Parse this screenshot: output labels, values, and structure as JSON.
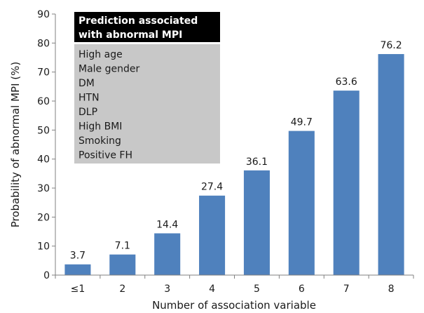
{
  "chart_data": {
    "type": "bar",
    "categories": [
      "≤1",
      "2",
      "3",
      "4",
      "5",
      "6",
      "7",
      "8"
    ],
    "values": [
      3.7,
      7.1,
      14.4,
      27.4,
      36.1,
      49.7,
      63.6,
      76.2
    ],
    "data_labels": [
      "3.7",
      "7.1",
      "14.4",
      "27.4",
      "36.1",
      "49.7",
      "63.6",
      "76.2"
    ],
    "title": "",
    "xlabel": "Number of association variable",
    "ylabel": "Probability of abnormal MPI (%)",
    "ylim": [
      0,
      90
    ],
    "yticks": [
      "0",
      "10",
      "20",
      "30",
      "40",
      "50",
      "60",
      "70",
      "80",
      "90"
    ],
    "grid": false,
    "bar_color": "#4f81bd",
    "legend_box": {
      "header_lines": [
        "Prediction associated",
        "with abnormal MPI"
      ],
      "header_color": "#000000",
      "body_color": "#c8c8c8",
      "items": [
        "High age",
        "Male gender",
        "DM",
        "HTN",
        "DLP",
        "High BMI",
        "Smoking",
        "Positive FH"
      ]
    }
  }
}
